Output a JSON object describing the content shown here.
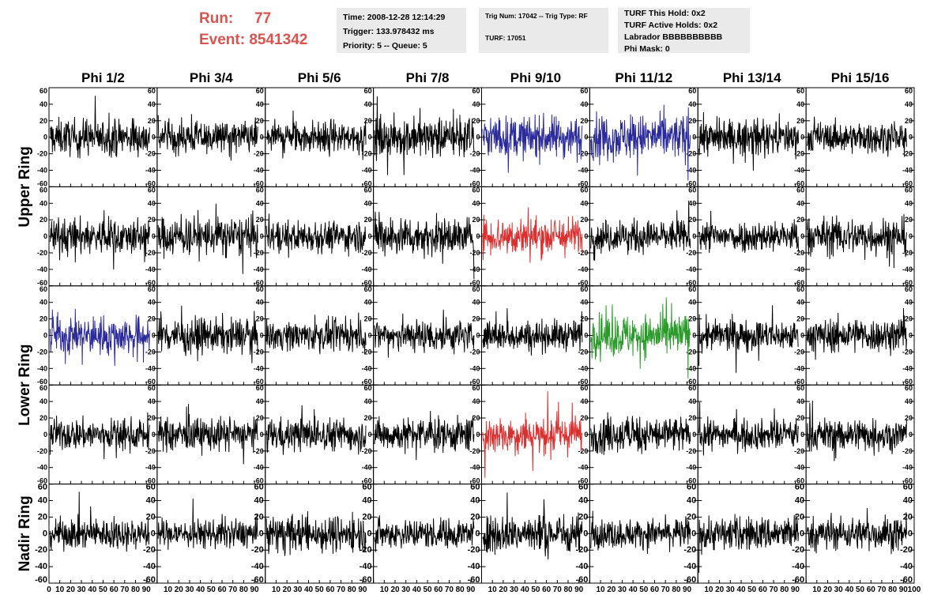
{
  "header": {
    "run_label": "Run:",
    "run_value": "77",
    "event_label": "Event:",
    "event_value": "8541342",
    "time": "Time: 2008-12-28 12:14:29",
    "trigger": "Trigger: 133.978432 ms",
    "priority": "Priority: 5 -- Queue: 5",
    "trig_num": "Trig Num: 17042 -- Trig Type: RF",
    "turf": "TURF: 17051",
    "turf_this_hold": "TURF This Hold: 0x2",
    "turf_active_holds": "TURF Active Holds: 0x2",
    "labrador": "Labrador BBBBBBBBBB",
    "phi_mask": "Phi Mask: 0"
  },
  "chart_data": {
    "type": "line",
    "columns": [
      "Phi 1/2",
      "Phi 3/4",
      "Phi 5/6",
      "Phi 7/8",
      "Phi 9/10",
      "Phi 11/12",
      "Phi 13/14",
      "Phi 15/16"
    ],
    "ring_labels": [
      "Upper Ring",
      "Lower Ring",
      "Nadir Ring"
    ],
    "rows": 5,
    "row_rings": [
      "Upper Ring",
      "Upper Ring",
      "Lower Ring",
      "Lower Ring",
      "Nadir Ring"
    ],
    "xlim": [
      0,
      100
    ],
    "ylim": [
      -60,
      60
    ],
    "y_ticks": [
      "60",
      "40",
      "20",
      "0",
      "-20",
      "-40",
      "-60"
    ],
    "x_tick_labels_bottom": [
      "0",
      "10",
      "20",
      "30",
      "40",
      "50",
      "60",
      "70",
      "80",
      "90",
      "100"
    ],
    "highlights": [
      {
        "row": 0,
        "col": 4,
        "color": "#2a2a9a"
      },
      {
        "row": 0,
        "col": 5,
        "color": "#2a2a9a"
      },
      {
        "row": 1,
        "col": 4,
        "color": "#d93030"
      },
      {
        "row": 2,
        "col": 0,
        "color": "#2a2a9a"
      },
      {
        "row": 2,
        "col": 5,
        "color": "#2a9a2a"
      },
      {
        "row": 3,
        "col": 4,
        "color": "#d93030"
      }
    ],
    "default_trace_color": "#000000",
    "trace_style": "noise waveform, amplitude ~ ±20 to ±45"
  }
}
